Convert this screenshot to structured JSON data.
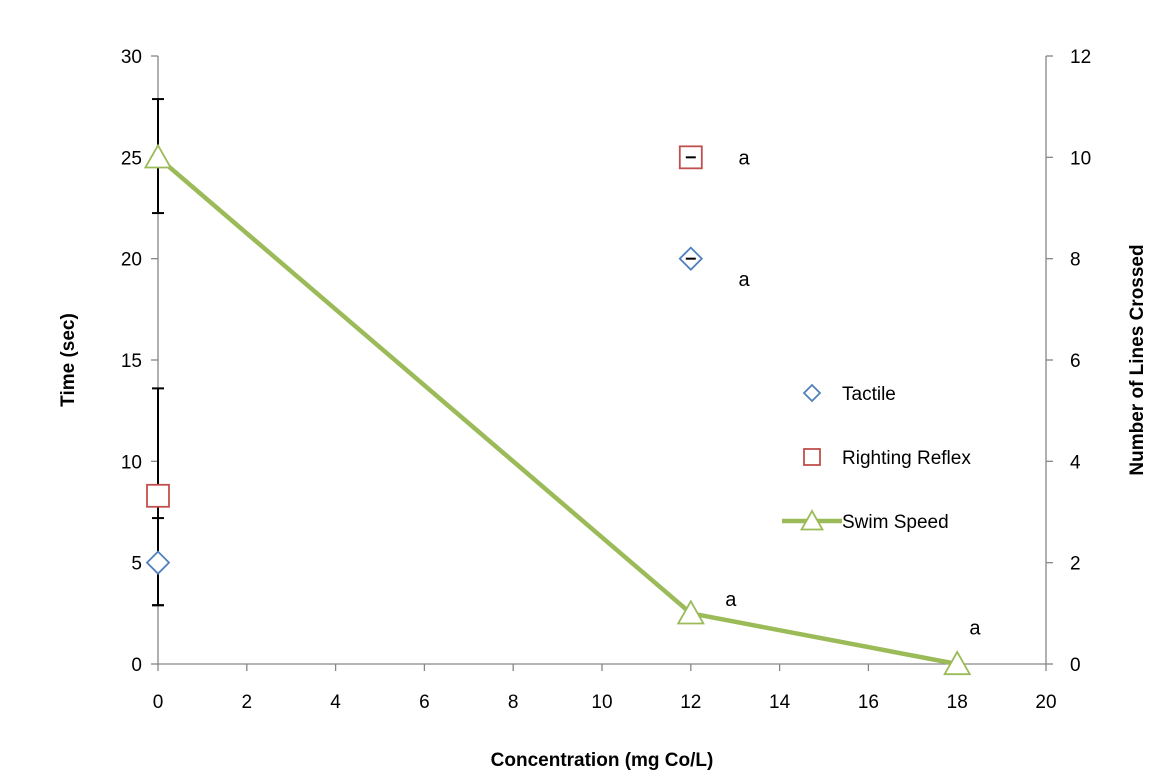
{
  "chart_data": {
    "type": "scatter",
    "title": "",
    "xlabel": "Concentration (mg Co/L)",
    "ylabel": "Time (sec)",
    "y2label": "Number of Lines Crossed",
    "xlim": [
      0,
      20
    ],
    "ylim": [
      0,
      30
    ],
    "y2lim": [
      0,
      12
    ],
    "x_ticks": [
      "0",
      "2",
      "4",
      "6",
      "8",
      "10",
      "12",
      "14",
      "16",
      "18",
      "20"
    ],
    "y_ticks": [
      "0",
      "5",
      "10",
      "15",
      "20",
      "25",
      "30"
    ],
    "y2_ticks": [
      "0",
      "2",
      "4",
      "6",
      "8",
      "10",
      "12"
    ],
    "grid": false,
    "legend_position": "right",
    "series": [
      {
        "name": "Tactile",
        "axis": "left",
        "marker": "diamond",
        "color": "#4F81BD",
        "points": [
          {
            "x": 0,
            "y": 5,
            "err_low": 2.9,
            "err_high": 7.2
          },
          {
            "x": 12,
            "y": 20,
            "err_low": 20,
            "err_high": 20
          }
        ]
      },
      {
        "name": "Righting Reflex",
        "axis": "left",
        "marker": "square",
        "color": "#C0504D",
        "points": [
          {
            "x": 0,
            "y": 8.3,
            "err_low": 2.9,
            "err_high": 13.6
          },
          {
            "x": 12,
            "y": 25,
            "err_low": 25,
            "err_high": 25
          }
        ]
      },
      {
        "name": "Swim Speed",
        "axis": "right",
        "marker": "triangle",
        "line": true,
        "color": "#9BBB59",
        "points": [
          {
            "x": 0,
            "y": 10,
            "err_low": 8.9,
            "err_high": 11.15
          },
          {
            "x": 12,
            "y": 1,
            "err_low": 1,
            "err_high": 1
          },
          {
            "x": 18,
            "y": 0,
            "err_low": 0,
            "err_high": 0
          }
        ]
      }
    ],
    "annotations": [
      {
        "text": "a",
        "x": 13.2,
        "y": 25,
        "axis": "left"
      },
      {
        "text": "a",
        "x": 13.2,
        "y": 19,
        "axis": "left"
      },
      {
        "text": "a",
        "x": 12.9,
        "y": 3.2,
        "axis": "left"
      },
      {
        "text": "a",
        "x": 18.4,
        "y": 1.8,
        "axis": "left"
      }
    ]
  }
}
